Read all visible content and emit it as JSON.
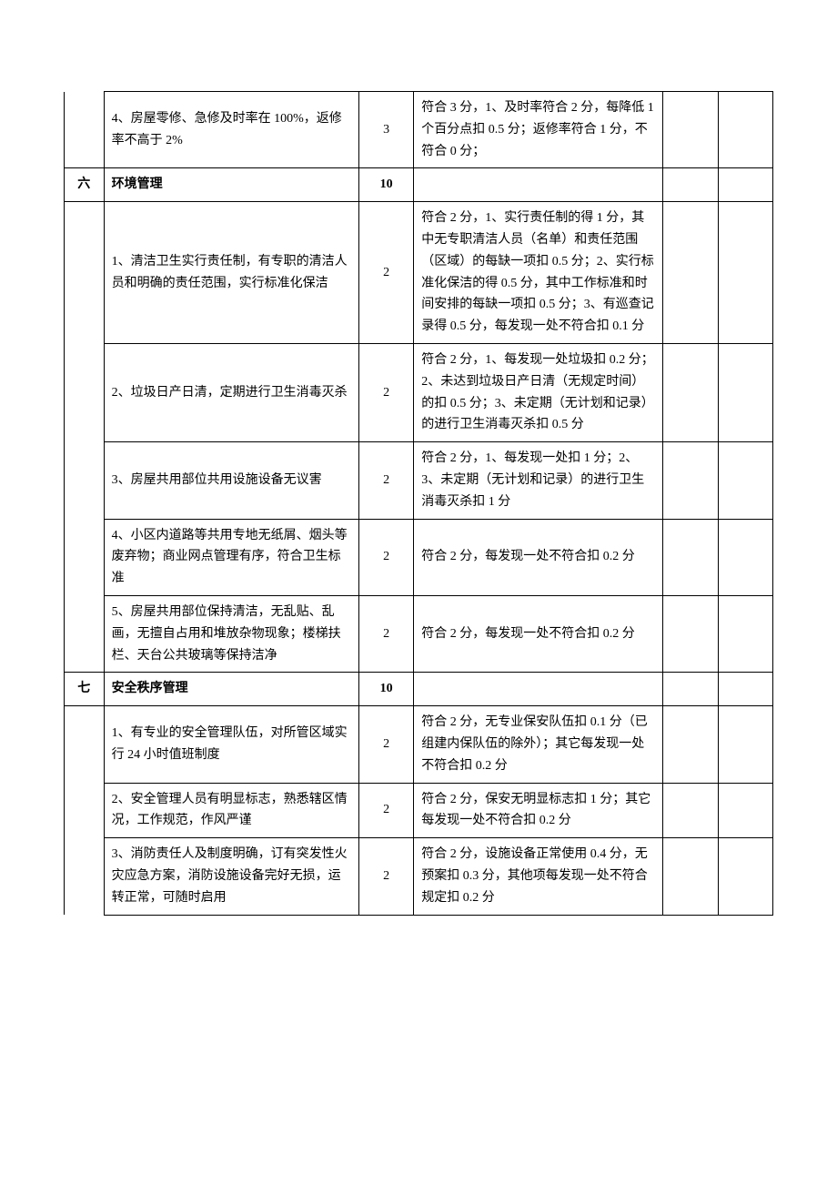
{
  "rows": [
    {
      "num": "",
      "desc": "4、房屋零修、急修及时率在 100%，返修率不高于 2%",
      "score": "3",
      "rule": "符合 3 分，1、及时率符合 2 分，每降低 1 个百分点扣 0.5 分；返修率符合 1 分，不符合 0 分；",
      "numClass": "no-top no-bottom",
      "header": false
    },
    {
      "num": "六",
      "desc": "环境管理",
      "score": "10",
      "rule": "",
      "numClass": "",
      "header": true
    },
    {
      "num": "",
      "desc": "1、清洁卫生实行责任制，有专职的清洁人员和明确的责任范围，实行标准化保洁",
      "score": "2",
      "rule": "符合 2 分，1、实行责任制的得 1 分，其中无专职清洁人员（名单）和责任范围（区域）的每缺一项扣 0.5 分；2、实行标准化保洁的得 0.5 分，其中工作标准和时间安排的每缺一项扣 0.5 分；3、有巡查记录得 0.5 分，每发现一处不符合扣 0.1 分",
      "numClass": "no-top no-bottom",
      "header": false
    },
    {
      "num": "",
      "desc": "2、垃圾日产日清，定期进行卫生消毒灭杀",
      "score": "2",
      "rule": "符合 2 分，1、每发现一处垃圾扣 0.2 分；2、未达到垃圾日产日清（无规定时间）的扣 0.5 分；3、未定期（无计划和记录）的进行卫生消毒灭杀扣 0.5 分",
      "numClass": "no-top no-bottom",
      "header": false
    },
    {
      "num": "",
      "desc": "3、房屋共用部位共用设施设备无议害",
      "score": "2",
      "rule": "符合 2 分，1、每发现一处扣 1 分；2、3、未定期（无计划和记录）的进行卫生消毒灭杀扣 1 分",
      "numClass": "no-top no-bottom",
      "header": false
    },
    {
      "num": "",
      "desc": "4、小区内道路等共用专地无纸屑、烟头等废弃物；商业网点管理有序，符合卫生标准",
      "score": "2",
      "rule": "符合 2 分，每发现一处不符合扣 0.2 分",
      "numClass": "no-top no-bottom",
      "header": false
    },
    {
      "num": "",
      "desc": "5、房屋共用部位保持清洁，无乱贴、乱画，无擅自占用和堆放杂物现象；楼梯扶栏、天台公共玻璃等保持洁净",
      "score": "2",
      "rule": "符合 2 分，每发现一处不符合扣 0.2 分",
      "numClass": "no-top",
      "header": false
    },
    {
      "num": "七",
      "desc": "安全秩序管理",
      "score": "10",
      "rule": "",
      "numClass": "",
      "header": true
    },
    {
      "num": "",
      "desc": "1、有专业的安全管理队伍，对所管区域实行 24 小时值班制度",
      "score": "2",
      "rule": "符合 2 分，无专业保安队伍扣 0.1 分（已组建内保队伍的除外）；其它每发现一处不符合扣 0.2 分",
      "numClass": "no-top no-bottom",
      "header": false
    },
    {
      "num": "",
      "desc": "2、安全管理人员有明显标志，熟悉辖区情况，工作规范，作风严谨",
      "score": "2",
      "rule": "符合 2 分，保安无明显标志扣 1 分；其它每发现一处不符合扣 0.2 分",
      "numClass": "no-top no-bottom",
      "header": false
    },
    {
      "num": "",
      "desc": "3、消防责任人及制度明确，订有突发性火灾应急方案，消防设施设备完好无损，运转正常，可随时启用",
      "score": "2",
      "rule": "符合 2 分，设施设备正常使用 0.4 分，无预案扣 0.3 分，其他项每发现一处不符合规定扣 0.2 分",
      "numClass": "no-top no-bottom",
      "header": false
    }
  ]
}
